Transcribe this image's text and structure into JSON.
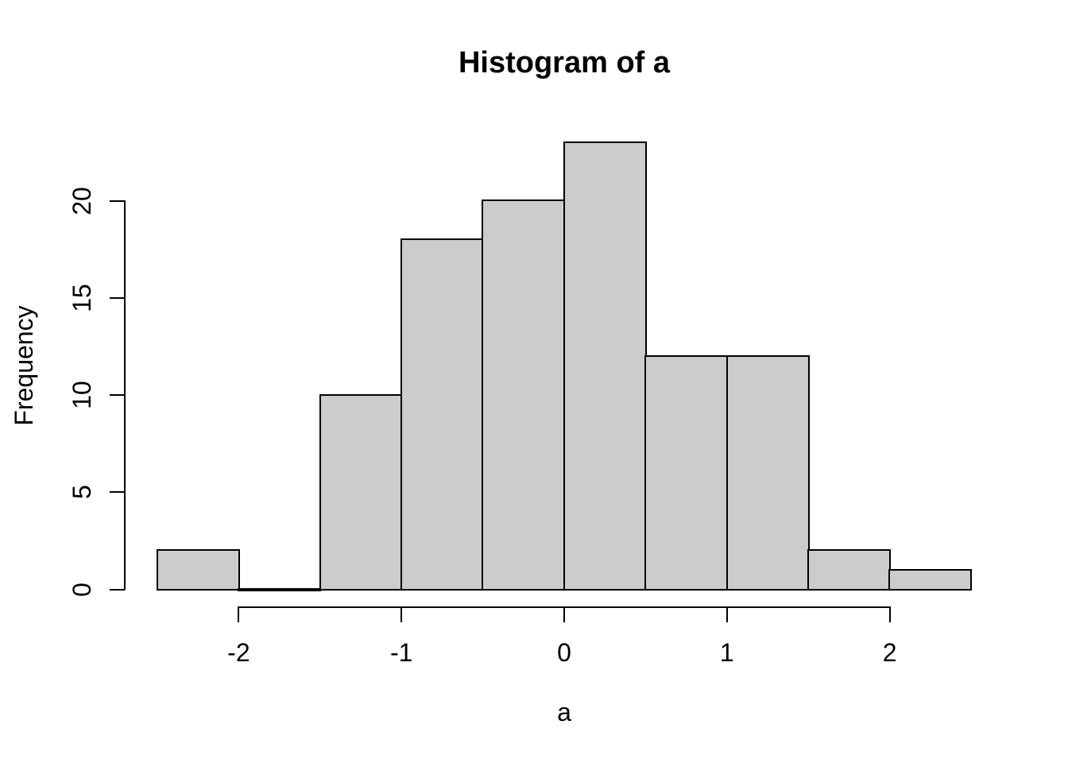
{
  "chart_data": {
    "type": "bar",
    "subtype": "histogram",
    "title": "Histogram of a",
    "xlabel": "a",
    "ylabel": "Frequency",
    "bin_edges": [
      -2.5,
      -2.0,
      -1.5,
      -1.0,
      -0.5,
      0.0,
      0.5,
      1.0,
      1.5,
      2.0,
      2.5
    ],
    "counts": [
      2,
      0,
      10,
      18,
      20,
      23,
      12,
      12,
      2,
      1
    ],
    "x_ticks": [
      -2,
      -1,
      0,
      1,
      2
    ],
    "x_tick_labels": [
      "-2",
      "-1",
      "0",
      "1",
      "2"
    ],
    "y_ticks": [
      0,
      5,
      10,
      15,
      20
    ],
    "y_tick_labels": [
      "0",
      "5",
      "10",
      "15",
      "20"
    ],
    "xlim": [
      -2.5,
      2.5
    ],
    "ylim": [
      0,
      23
    ],
    "grid": false,
    "legend": false,
    "bar_fill": "#CCCCCC",
    "bar_stroke": "#000000",
    "axis_color": "#000000",
    "background": "#FFFFFF"
  }
}
